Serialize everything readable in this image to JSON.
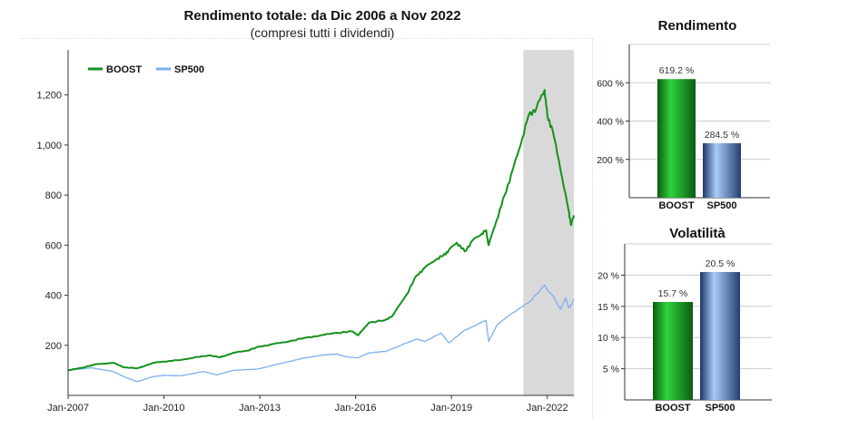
{
  "header": {
    "title": "Rendimento totale: da Dic 2006 a Nov 2022",
    "subtitle": "(compresi tutti i dividendi)"
  },
  "colors": {
    "boost": "#14911e",
    "sp500": "#7ab0ee",
    "shade": "#d9d9d9",
    "axis": "#333333"
  },
  "chart_data": [
    {
      "type": "line",
      "x_tick_labels": [
        "Jan-2007",
        "Jan-2010",
        "Jan-2013",
        "Jan-2016",
        "Jan-2019",
        "Jan-2022"
      ],
      "y_tick_labels": [
        "200",
        "400",
        "600",
        "800",
        "1,000",
        "1,200"
      ],
      "ylim": [
        0,
        1380
      ],
      "xlim": [
        "2007-01",
        "2022-11"
      ],
      "shaded_period": [
        "2021-04",
        "2022-11"
      ],
      "legend": "top-left",
      "series": [
        {
          "name": "BOOST",
          "color": "#14911e",
          "points": [
            [
              "2007-01",
              100
            ],
            [
              "2007-06",
              110
            ],
            [
              "2007-12",
              125
            ],
            [
              "2008-06",
              130
            ],
            [
              "2008-10",
              112
            ],
            [
              "2009-03",
              108
            ],
            [
              "2009-09",
              130
            ],
            [
              "2010-01",
              135
            ],
            [
              "2010-06",
              140
            ],
            [
              "2010-12",
              150
            ],
            [
              "2011-06",
              160
            ],
            [
              "2011-10",
              152
            ],
            [
              "2012-03",
              170
            ],
            [
              "2012-08",
              178
            ],
            [
              "2013-01",
              195
            ],
            [
              "2013-06",
              205
            ],
            [
              "2013-12",
              215
            ],
            [
              "2014-06",
              230
            ],
            [
              "2014-12",
              240
            ],
            [
              "2015-06",
              250
            ],
            [
              "2015-12",
              255
            ],
            [
              "2016-02",
              240
            ],
            [
              "2016-06",
              290
            ],
            [
              "2016-12",
              300
            ],
            [
              "2017-03",
              320
            ],
            [
              "2017-08",
              400
            ],
            [
              "2017-12",
              480
            ],
            [
              "2018-03",
              510
            ],
            [
              "2018-07",
              540
            ],
            [
              "2018-10",
              560
            ],
            [
              "2018-12",
              580
            ],
            [
              "2019-03",
              610
            ],
            [
              "2019-06",
              575
            ],
            [
              "2019-09",
              620
            ],
            [
              "2019-12",
              640
            ],
            [
              "2020-02",
              660
            ],
            [
              "2020-03",
              600
            ],
            [
              "2020-06",
              700
            ],
            [
              "2020-09",
              800
            ],
            [
              "2020-12",
              900
            ],
            [
              "2021-03",
              1000
            ],
            [
              "2021-06",
              1120
            ],
            [
              "2021-09",
              1150
            ],
            [
              "2021-12",
              1220
            ],
            [
              "2022-01",
              1120
            ],
            [
              "2022-03",
              1060
            ],
            [
              "2022-06",
              900
            ],
            [
              "2022-09",
              740
            ],
            [
              "2022-10",
              680
            ],
            [
              "2022-11",
              719
            ]
          ]
        },
        {
          "name": "SP500",
          "color": "#7ab0ee",
          "points": [
            [
              "2007-01",
              100
            ],
            [
              "2007-10",
              110
            ],
            [
              "2008-06",
              95
            ],
            [
              "2008-11",
              70
            ],
            [
              "2009-03",
              55
            ],
            [
              "2009-09",
              75
            ],
            [
              "2010-01",
              80
            ],
            [
              "2010-07",
              78
            ],
            [
              "2011-04",
              95
            ],
            [
              "2011-09",
              82
            ],
            [
              "2012-03",
              100
            ],
            [
              "2012-12",
              105
            ],
            [
              "2013-06",
              120
            ],
            [
              "2013-12",
              135
            ],
            [
              "2014-06",
              150
            ],
            [
              "2014-12",
              160
            ],
            [
              "2015-06",
              165
            ],
            [
              "2015-09",
              155
            ],
            [
              "2016-02",
              150
            ],
            [
              "2016-06",
              170
            ],
            [
              "2016-12",
              175
            ],
            [
              "2017-06",
              200
            ],
            [
              "2017-12",
              225
            ],
            [
              "2018-03",
              215
            ],
            [
              "2018-09",
              250
            ],
            [
              "2018-12",
              210
            ],
            [
              "2019-06",
              260
            ],
            [
              "2019-12",
              290
            ],
            [
              "2020-02",
              300
            ],
            [
              "2020-03",
              215
            ],
            [
              "2020-06",
              280
            ],
            [
              "2020-12",
              330
            ],
            [
              "2021-06",
              370
            ],
            [
              "2021-12",
              440
            ],
            [
              "2022-01",
              420
            ],
            [
              "2022-03",
              400
            ],
            [
              "2022-06",
              345
            ],
            [
              "2022-08",
              390
            ],
            [
              "2022-09",
              350
            ],
            [
              "2022-10",
              360
            ],
            [
              "2022-11",
              384
            ]
          ]
        }
      ]
    },
    {
      "type": "bar",
      "title": "Rendimento",
      "categories": [
        "BOOST",
        "SP500"
      ],
      "values": [
        619.2,
        284.5
      ],
      "value_labels": [
        "619.2 %",
        "284.5 %"
      ],
      "y_tick_labels": [
        "200 %",
        "400 %",
        "600 %"
      ],
      "ylim": [
        0,
        800
      ]
    },
    {
      "type": "bar",
      "title": "Volatilità",
      "categories": [
        "BOOST",
        "SP500"
      ],
      "values": [
        15.7,
        20.5
      ],
      "value_labels": [
        "15.7 %",
        "20.5 %"
      ],
      "y_tick_labels": [
        "5 %",
        "10 %",
        "15 %",
        "20 %"
      ],
      "ylim": [
        0,
        25
      ]
    }
  ]
}
